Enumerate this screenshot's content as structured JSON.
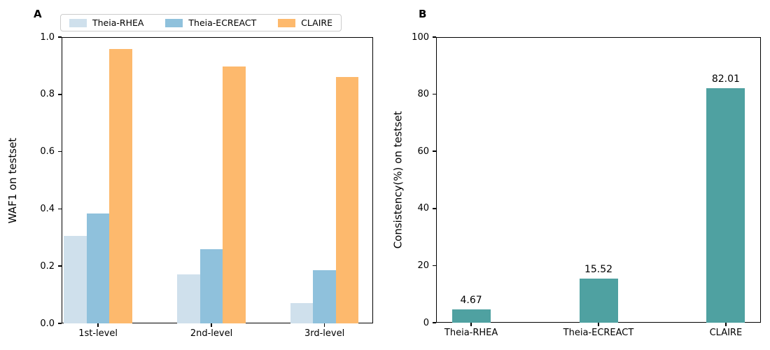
{
  "figure": {
    "panel_a_label": "A",
    "panel_b_label": "B"
  },
  "chart_data": [
    {
      "type": "bar",
      "panel": "A",
      "title": "A",
      "xlabel": "",
      "ylabel": "WAF1 on testset",
      "categories": [
        "1st-level",
        "2nd-level",
        "3rd-level"
      ],
      "series": [
        {
          "name": "Theia-RHEA",
          "color": "#cfe0ec",
          "values": [
            0.305,
            0.172,
            0.072
          ]
        },
        {
          "name": "Theia-ECREACT",
          "color": "#8fc1dc",
          "values": [
            0.385,
            0.258,
            0.185
          ]
        },
        {
          "name": "CLAIRE",
          "color": "#fdb96d",
          "values": [
            0.958,
            0.897,
            0.86
          ]
        }
      ],
      "ylim": [
        0,
        1.0
      ],
      "yticks": [
        0,
        0.2,
        0.4,
        0.6,
        0.8,
        1.0
      ],
      "ytick_labels": [
        "0.0",
        "0.2",
        "0.4",
        "0.6",
        "0.8",
        "1.0"
      ],
      "legend_position": "top",
      "grid": false
    },
    {
      "type": "bar",
      "panel": "B",
      "title": "B",
      "xlabel": "",
      "ylabel": "Consistency(%) on testset",
      "categories": [
        "Theia-RHEA",
        "Theia-ECREACT",
        "CLAIRE"
      ],
      "series": [
        {
          "name": "Consistency",
          "color": "#4fa1a1",
          "values": [
            4.67,
            15.52,
            82.01
          ]
        }
      ],
      "value_labels": [
        "4.67",
        "15.52",
        "82.01"
      ],
      "ylim": [
        0,
        100
      ],
      "yticks": [
        0,
        20,
        40,
        60,
        80,
        100
      ],
      "ytick_labels": [
        "0",
        "20",
        "40",
        "60",
        "80",
        "100"
      ],
      "legend_position": "none",
      "grid": false
    }
  ]
}
